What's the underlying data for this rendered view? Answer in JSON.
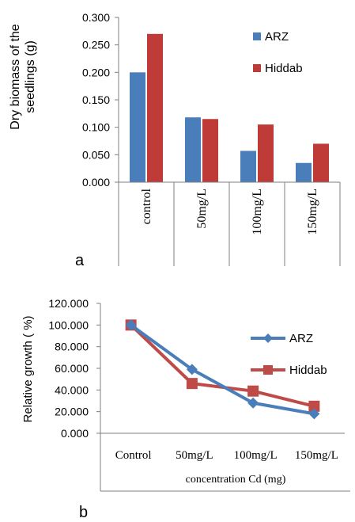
{
  "chart_data": [
    {
      "type": "bar",
      "panel_label": "a",
      "ylabel": "Dry biomass of the seedlings (g)",
      "ylim": [
        0,
        0.3
      ],
      "yticks": [
        "0.000",
        "0.050",
        "0.100",
        "0.150",
        "0.200",
        "0.250",
        "0.300"
      ],
      "categories": [
        "control",
        "50mg/L",
        "100mg/L",
        "150mg/L"
      ],
      "series": [
        {
          "name": "ARZ",
          "values": [
            0.2,
            0.118,
            0.057,
            0.035
          ],
          "color": "#4a7ebb"
        },
        {
          "name": "Hiddab",
          "values": [
            0.27,
            0.115,
            0.105,
            0.07
          ],
          "color": "#be3b37"
        }
      ],
      "legend_position": "right"
    },
    {
      "type": "line",
      "panel_label": "b",
      "ylabel": "Relative growth ( %)",
      "xlabel": "concentration Cd (mg)",
      "ylim": [
        0,
        120
      ],
      "yticks": [
        "0.000",
        "20.000",
        "40.000",
        "60.000",
        "80.000",
        "100.000",
        "120.000"
      ],
      "categories": [
        "Control",
        "50mg/L",
        "100mg/L",
        "150mg/L"
      ],
      "series": [
        {
          "name": "ARZ",
          "values": [
            100,
            59,
            28,
            18
          ],
          "color": "#4a7ebb",
          "marker": "diamond"
        },
        {
          "name": "Hiddab",
          "values": [
            100,
            46,
            39,
            25
          ],
          "color": "#be4b48",
          "marker": "square"
        }
      ],
      "legend_position": "right"
    }
  ]
}
